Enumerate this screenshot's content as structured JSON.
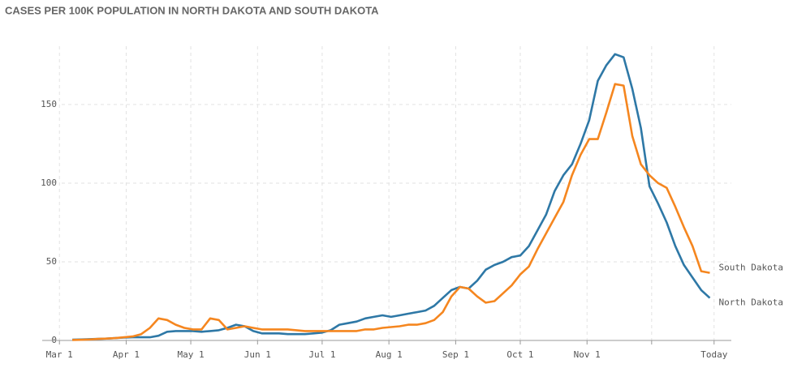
{
  "chart_data": {
    "type": "line",
    "title": "CASES PER 100K POPULATION IN NORTH DAKOTA AND SOUTH DAKOTA",
    "x": [
      6,
      10,
      14,
      18,
      22,
      26,
      30,
      34,
      38,
      42,
      46,
      50,
      54,
      58,
      62,
      66,
      70,
      74,
      78,
      82,
      86,
      90,
      94,
      98,
      102,
      106,
      110,
      114,
      118,
      122,
      126,
      130,
      134,
      138,
      142,
      146,
      150,
      154,
      158,
      162,
      166,
      170,
      174,
      178,
      182,
      186,
      190,
      194,
      198,
      202,
      206,
      210,
      214,
      218,
      222,
      226,
      230,
      234,
      238,
      242,
      246,
      250,
      254,
      258,
      262,
      266,
      270,
      274,
      278,
      282,
      286,
      290,
      294,
      298,
      302
    ],
    "series": [
      {
        "name": "North Dakota",
        "color": "#2e78a6",
        "values": [
          0.5,
          0.6,
          0.8,
          1,
          1.2,
          1.5,
          1.8,
          2,
          2,
          2,
          3,
          5.5,
          6,
          6,
          6,
          5.5,
          6,
          6.5,
          8,
          10,
          9,
          6,
          4.5,
          4.5,
          4.5,
          4,
          4,
          4,
          4.5,
          5,
          6.5,
          10,
          11,
          12,
          14,
          15,
          16,
          15,
          16,
          17,
          18,
          19,
          22,
          27,
          32,
          34,
          33,
          38,
          45,
          48,
          50,
          53,
          54,
          60,
          70,
          80,
          95,
          105,
          112,
          125,
          140,
          165,
          175,
          182,
          180,
          160,
          135,
          98,
          87,
          75,
          60,
          48,
          40,
          32,
          27
        ]
      },
      {
        "name": "South Dakota",
        "color": "#f5861f",
        "values": [
          0.3,
          0.4,
          0.6,
          1,
          1.2,
          1.5,
          2,
          2.5,
          4,
          8,
          14,
          13,
          10,
          8,
          7,
          7,
          14,
          13,
          7,
          8,
          9,
          8,
          7,
          7,
          7,
          7,
          6.5,
          6,
          6,
          6,
          6,
          6,
          6,
          6,
          7,
          7,
          8,
          8.5,
          9,
          10,
          10,
          11,
          13,
          18,
          28,
          34,
          33,
          28,
          24,
          25,
          30,
          35,
          42,
          47,
          58,
          68,
          78,
          88,
          105,
          118,
          128,
          128,
          145,
          163,
          162,
          130,
          112,
          105,
          100,
          97,
          85,
          72,
          60,
          44,
          43
        ]
      }
    ],
    "xlim": [
      -8,
      312
    ],
    "xticks": [
      {
        "value": 0,
        "label": "Mar 1"
      },
      {
        "value": 31,
        "label": "Apr 1"
      },
      {
        "value": 61,
        "label": "May 1"
      },
      {
        "value": 92,
        "label": "Jun 1"
      },
      {
        "value": 122,
        "label": "Jul 1"
      },
      {
        "value": 153,
        "label": "Aug 1"
      },
      {
        "value": 184,
        "label": "Sep 1"
      },
      {
        "value": 214,
        "label": "Oct 1"
      },
      {
        "value": 245,
        "label": "Nov 1"
      },
      {
        "value": 275,
        "label": null
      },
      {
        "value": 304,
        "label": "Today"
      }
    ],
    "ylim": [
      0,
      185
    ],
    "yticks": [
      0,
      50,
      100,
      150
    ],
    "grid": true
  }
}
